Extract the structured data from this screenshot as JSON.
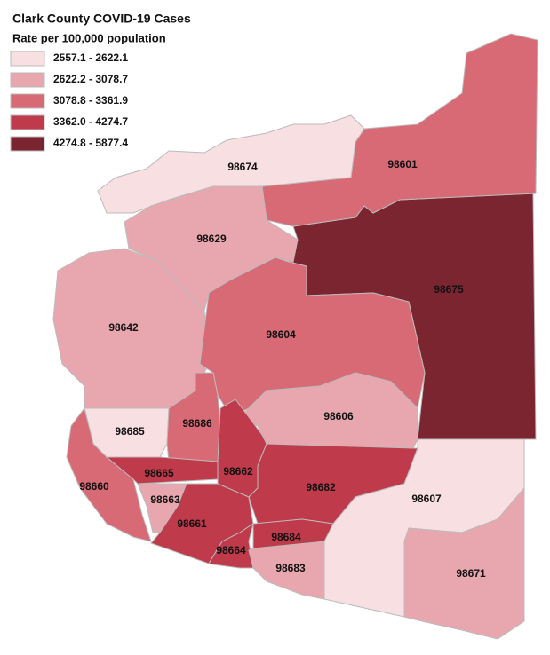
{
  "map": {
    "title": "Clark County COVID-19 Cases",
    "subtitle": "Rate per 100,000 population",
    "legend": [
      {
        "label": "2557.1 - 2622.1",
        "color": "#f8dfe2"
      },
      {
        "label": "2622.2 - 3078.7",
        "color": "#e8a6ae"
      },
      {
        "label": "3078.8 - 3361.9",
        "color": "#d86a76"
      },
      {
        "label": "3362.0 - 4274.7",
        "color": "#bf3a4b"
      },
      {
        "label": "4274.8 - 5877.4",
        "color": "#7b2530"
      }
    ],
    "regions": [
      {
        "zip": "98675",
        "color": "#7b2530"
      },
      {
        "zip": "98601",
        "color": "#d86a76"
      },
      {
        "zip": "98674",
        "color": "#f8dfe2"
      },
      {
        "zip": "98629",
        "color": "#e8a6ae"
      },
      {
        "zip": "98642",
        "color": "#e8a6ae"
      },
      {
        "zip": "98604",
        "color": "#d86a76"
      },
      {
        "zip": "98606",
        "color": "#e8a6ae"
      },
      {
        "zip": "98685",
        "color": "#f8dfe2"
      },
      {
        "zip": "98686",
        "color": "#d86a76"
      },
      {
        "zip": "98660",
        "color": "#d86a76"
      },
      {
        "zip": "98665",
        "color": "#bf3a4b"
      },
      {
        "zip": "98662",
        "color": "#bf3a4b"
      },
      {
        "zip": "98682",
        "color": "#bf3a4b"
      },
      {
        "zip": "98663",
        "color": "#e8a6ae"
      },
      {
        "zip": "98661",
        "color": "#bf3a4b"
      },
      {
        "zip": "98664",
        "color": "#bf3a4b"
      },
      {
        "zip": "98684",
        "color": "#bf3a4b"
      },
      {
        "zip": "98683",
        "color": "#e8a6ae"
      },
      {
        "zip": "98607",
        "color": "#f8dfe2"
      },
      {
        "zip": "98671",
        "color": "#e8a6ae"
      }
    ]
  }
}
